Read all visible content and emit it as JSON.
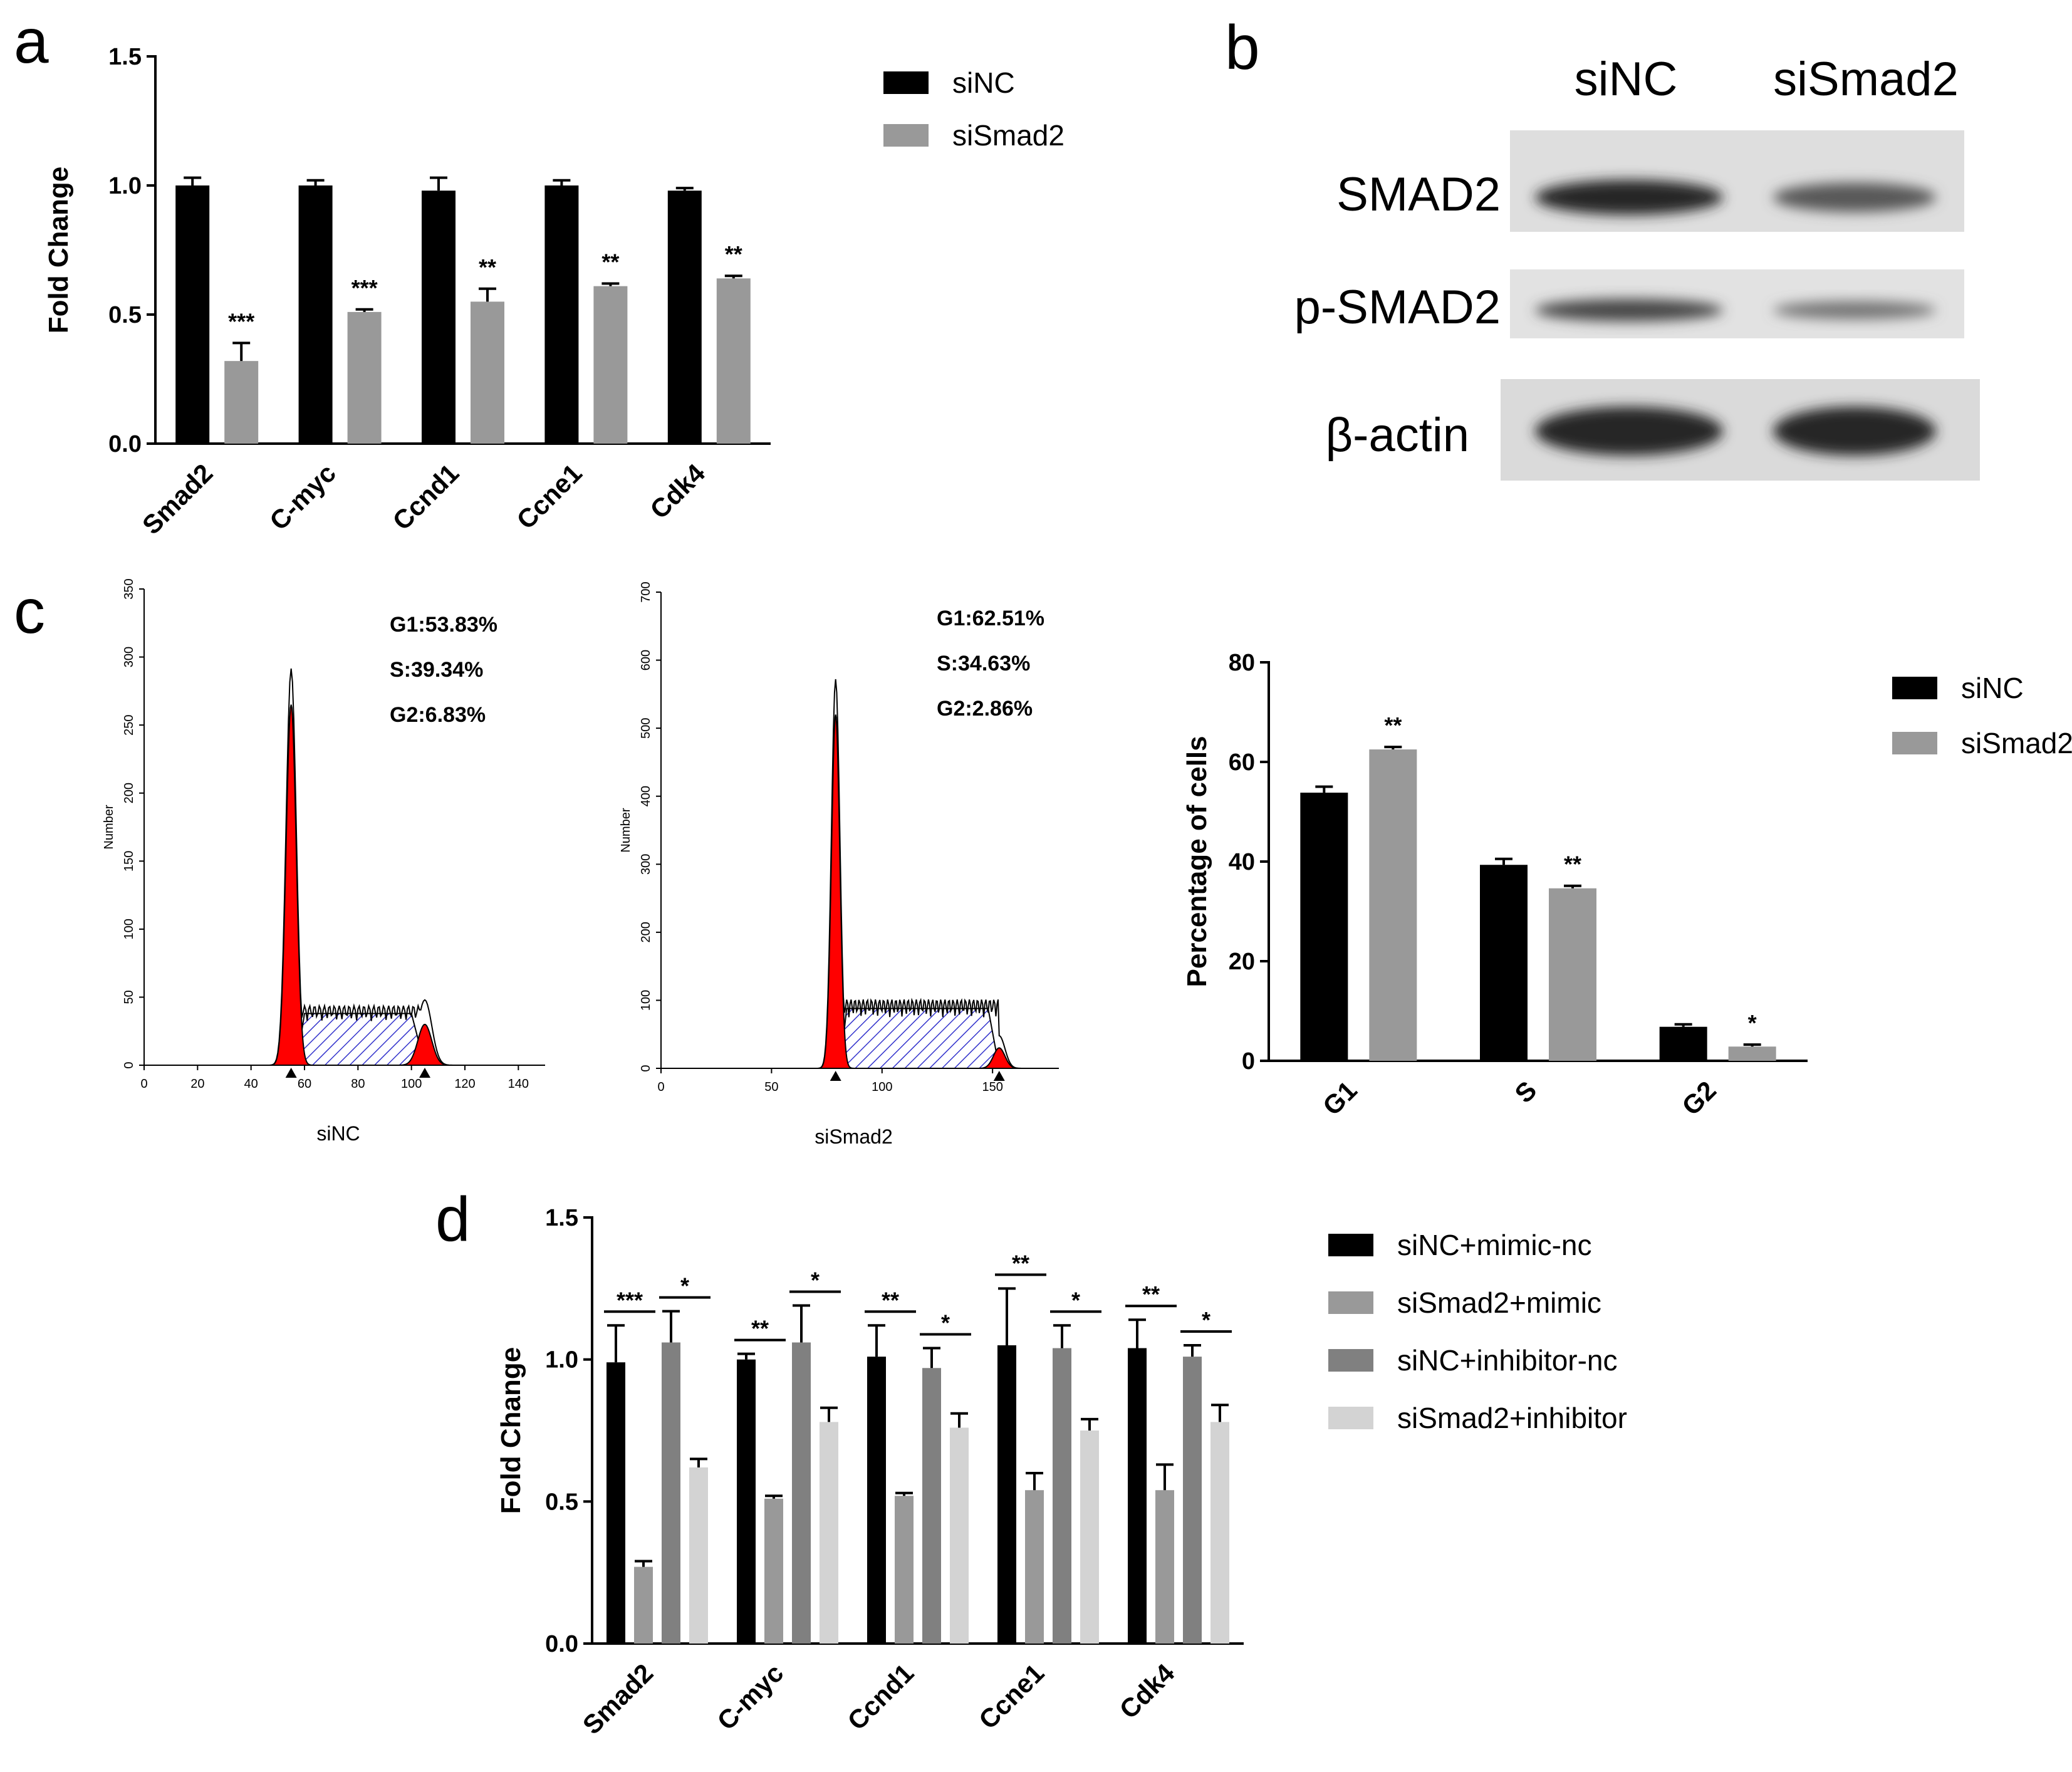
{
  "panels": {
    "a": "a",
    "b": "b",
    "c": "c",
    "d": "d"
  },
  "colors": {
    "siNC": "#000000",
    "siSmad2": "#999999",
    "siNC_inhib_nc": "#808080",
    "siSmad2_inhib": "#d3d3d3",
    "histo_fill": "#ff0000",
    "s_phase_hatch": "#3333cc"
  },
  "chart_data": [
    {
      "id": "a",
      "type": "bar",
      "title": "",
      "xlabel": "",
      "ylabel": "Fold Change",
      "ylim": [
        0,
        1.5
      ],
      "yticks": [
        "0.0",
        "0.5",
        "1.0",
        "1.5"
      ],
      "categories": [
        "Smad2",
        "C-myc",
        "Ccnd1",
        "Ccne1",
        "Cdk4"
      ],
      "series": [
        {
          "name": "siNC",
          "values": [
            1.0,
            1.0,
            0.98,
            1.0,
            0.98
          ],
          "errors": [
            0.03,
            0.02,
            0.05,
            0.02,
            0.01
          ]
        },
        {
          "name": "siSmad2",
          "values": [
            0.32,
            0.51,
            0.55,
            0.61,
            0.64
          ],
          "errors": [
            0.07,
            0.01,
            0.05,
            0.01,
            0.01
          ]
        }
      ],
      "significance": [
        "***",
        "***",
        "**",
        "**",
        "**"
      ],
      "legend": "top-right",
      "grid": false
    },
    {
      "id": "c_right",
      "type": "bar",
      "title": "",
      "xlabel": "",
      "ylabel": "Percentage of cells",
      "ylim": [
        0,
        80
      ],
      "yticks": [
        "0",
        "20",
        "40",
        "60",
        "80"
      ],
      "categories": [
        "G1",
        "S",
        "G2"
      ],
      "series": [
        {
          "name": "siNC",
          "values": [
            53.83,
            39.34,
            6.83
          ],
          "errors": [
            1.2,
            1.2,
            0.5
          ]
        },
        {
          "name": "siSmad2",
          "values": [
            62.51,
            34.63,
            2.86
          ],
          "errors": [
            0.5,
            0.5,
            0.4
          ]
        }
      ],
      "significance": [
        "**",
        "**",
        "*"
      ],
      "legend": "top-right",
      "grid": false
    },
    {
      "id": "d",
      "type": "bar",
      "title": "",
      "xlabel": "",
      "ylabel": "Fold Change",
      "ylim": [
        0,
        1.5
      ],
      "yticks": [
        "0.0",
        "0.5",
        "1.0",
        "1.5"
      ],
      "categories": [
        "Smad2",
        "C-myc",
        "Ccnd1",
        "Ccne1",
        "Cdk4"
      ],
      "series": [
        {
          "name": "siNC+mimic-nc",
          "values": [
            0.99,
            1.0,
            1.01,
            1.05,
            1.04
          ],
          "errors": [
            0.13,
            0.02,
            0.11,
            0.2,
            0.1
          ]
        },
        {
          "name": "siSmad2+mimic",
          "values": [
            0.27,
            0.51,
            0.52,
            0.54,
            0.54
          ],
          "errors": [
            0.02,
            0.01,
            0.01,
            0.06,
            0.09
          ]
        },
        {
          "name": "siNC+inhibitor-nc",
          "values": [
            1.06,
            1.06,
            0.97,
            1.04,
            1.01
          ],
          "errors": [
            0.11,
            0.13,
            0.07,
            0.08,
            0.04
          ]
        },
        {
          "name": "siSmad2+inhibitor",
          "values": [
            0.62,
            0.78,
            0.76,
            0.75,
            0.78
          ],
          "errors": [
            0.03,
            0.05,
            0.05,
            0.04,
            0.06
          ]
        }
      ],
      "significance_mimic": [
        "***",
        "**",
        "**",
        "**",
        "**"
      ],
      "significance_inhibitor": [
        "*",
        "*",
        "*",
        "*",
        "*"
      ],
      "legend": "top-right",
      "grid": false
    }
  ],
  "blot": {
    "columns": [
      "siNC",
      "siSmad2"
    ],
    "rows": [
      "SMAD2",
      "p-SMAD2",
      "β-actin"
    ],
    "intensity": [
      [
        1.0,
        0.6
      ],
      [
        0.75,
        0.35
      ],
      [
        1.0,
        1.0
      ]
    ]
  },
  "facs": [
    {
      "name": "siNC",
      "ylabel": "Number",
      "yticks": [
        "0",
        "50",
        "100",
        "150",
        "200",
        "250",
        "300",
        "350"
      ],
      "xticks": [
        "0",
        "20",
        "40",
        "60",
        "80",
        "100",
        "120",
        "140"
      ],
      "xmax": 150,
      "ymax": 350,
      "g1_peak": 55,
      "g1_height": 265,
      "g2_peak": 105,
      "g2_height": 30,
      "s_level": 38,
      "stats": [
        "G1:53.83%",
        "S:39.34%",
        "G2:6.83%"
      ]
    },
    {
      "name": "siSmad2",
      "ylabel": "Number",
      "yticks": [
        "0",
        "100",
        "200",
        "300",
        "400",
        "500",
        "600",
        "700"
      ],
      "xticks": [
        "0",
        "50",
        "100",
        "150"
      ],
      "xmax": 180,
      "ymax": 700,
      "g1_peak": 79,
      "g1_height": 520,
      "g2_peak": 153,
      "g2_height": 30,
      "s_level": 88,
      "stats": [
        "G1:62.51%",
        "S:34.63%",
        "G2:2.86%"
      ]
    }
  ]
}
